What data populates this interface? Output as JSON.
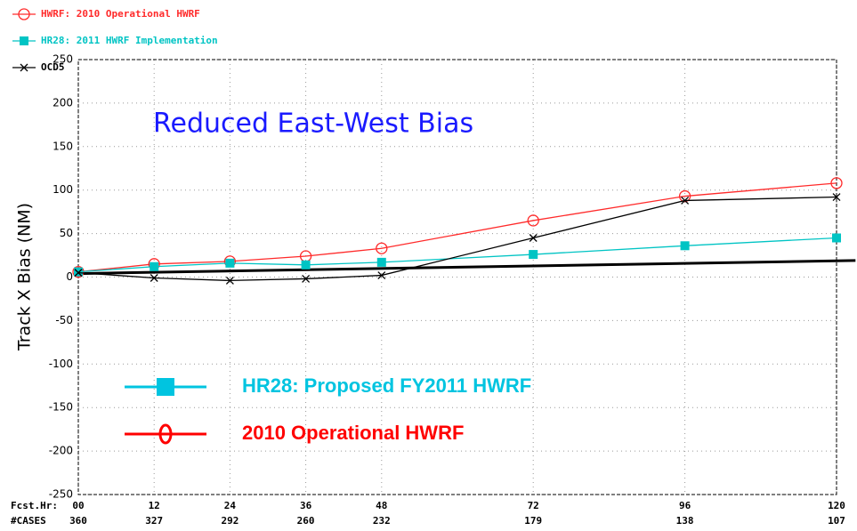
{
  "chart_data": {
    "type": "line",
    "ylabel": "Track X Bias (NM)",
    "annotation": "Reduced East-West Bias",
    "xlabel_row1": "Fcst.Hr:",
    "xlabel_row2": "#CASES",
    "x": [
      0,
      12,
      24,
      36,
      48,
      72,
      96,
      120
    ],
    "cases": [
      "360",
      "327",
      "292",
      "260",
      "232",
      "179",
      "138",
      "107"
    ],
    "series": [
      {
        "name": "HWRF: 2010 Operational HWRF",
        "color": "#ff2a2a",
        "marker": "circle",
        "values": [
          6,
          15,
          18,
          24,
          33,
          65,
          93,
          108
        ]
      },
      {
        "name": "HR28: 2011 HWRF Implementation",
        "color": "#00c4c4",
        "marker": "square",
        "values": [
          6,
          12,
          16,
          14,
          17,
          26,
          36,
          45
        ]
      },
      {
        "name": "OCD5",
        "color": "#000000",
        "marker": "x",
        "values": [
          5,
          -1,
          -4,
          -2,
          2,
          45,
          88,
          92
        ]
      }
    ],
    "trend_line": {
      "x": [
        0,
        123
      ],
      "values": [
        4,
        19
      ],
      "color": "#000000"
    },
    "legend2": [
      {
        "name": "HR28: Proposed FY2011 HWRF",
        "color": "#00c4e0",
        "marker": "square"
      },
      {
        "name": "2010 Operational HWRF",
        "color": "#ff0000",
        "marker": "circle"
      }
    ],
    "xlim": [
      0,
      120
    ],
    "xticks": [
      {
        "value": 0,
        "label": "00"
      },
      12,
      24,
      36,
      48,
      72,
      96,
      120
    ],
    "ylim": [
      -250,
      250
    ],
    "yticks": [
      -250,
      -200,
      -150,
      -100,
      -50,
      0,
      50,
      100,
      150,
      200,
      250
    ],
    "grid": true
  }
}
